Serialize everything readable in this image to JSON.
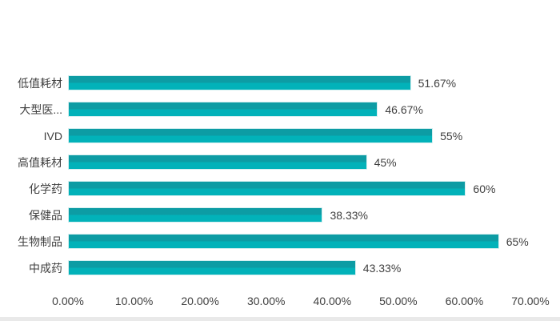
{
  "chart_data": {
    "type": "bar",
    "orientation": "horizontal",
    "title": "",
    "xlabel": "",
    "ylabel": "",
    "categories": [
      "低值耗材",
      "大型医...",
      "IVD",
      "高值耗材",
      "化学药",
      "保健品",
      "生物制品",
      "中成药"
    ],
    "values": [
      51.67,
      46.67,
      55,
      45,
      60,
      38.33,
      65,
      43.33
    ],
    "value_labels": [
      "51.67%",
      "46.67%",
      "55%",
      "45%",
      "60%",
      "38.33%",
      "65%",
      "43.33%"
    ],
    "x_axis": {
      "min": 0,
      "max": 70,
      "tick_step": 10,
      "tick_labels": [
        "0.00%",
        "10.00%",
        "20.00%",
        "30.00%",
        "40.00%",
        "50.00%",
        "60.00%",
        "70.00%"
      ]
    },
    "grid": false,
    "legend": false,
    "data_labels_position": "outside-end"
  },
  "colors": {
    "bar_gradient_top": "#0d9ca4",
    "bar_gradient_bottom": "#02b2b9",
    "text": "#404040",
    "background": "#ffffff",
    "scrollbar_track": "#e9e9e9"
  }
}
